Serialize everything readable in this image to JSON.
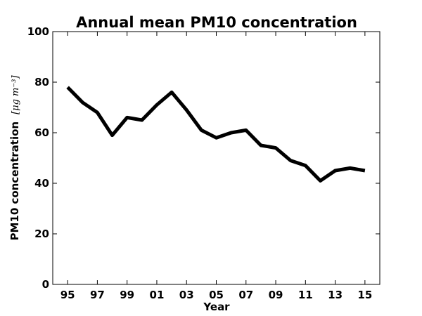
{
  "chart_data": {
    "type": "line",
    "title": "Annual mean PM10 concentration",
    "xlabel": "Year",
    "ylabel": "PM10 concentration",
    "ylabel_unit": "[μg m⁻³]",
    "x": [
      1995,
      1996,
      1997,
      1998,
      1999,
      2000,
      2001,
      2002,
      2003,
      2004,
      2005,
      2006,
      2007,
      2008,
      2009,
      2010,
      2011,
      2012,
      2013,
      2014,
      2015
    ],
    "series": [
      {
        "values": [
          78,
          72,
          68,
          59,
          66,
          65,
          71,
          76,
          69,
          61,
          58,
          60,
          61,
          55,
          54,
          49,
          47,
          41,
          45,
          46,
          45
        ]
      }
    ],
    "xlim": [
      1994,
      2016
    ],
    "ylim": [
      0,
      100
    ],
    "x_ticks": [
      1995,
      1997,
      1999,
      2001,
      2003,
      2005,
      2007,
      2009,
      2011,
      2013,
      2015
    ],
    "x_tick_labels": [
      "95",
      "97",
      "99",
      "01",
      "03",
      "05",
      "07",
      "09",
      "11",
      "13",
      "15"
    ],
    "y_ticks": [
      0,
      20,
      40,
      60,
      80,
      100
    ],
    "y_tick_labels": [
      "0",
      "20",
      "40",
      "60",
      "80",
      "100"
    ],
    "grid": false,
    "line_color": "#000000"
  }
}
